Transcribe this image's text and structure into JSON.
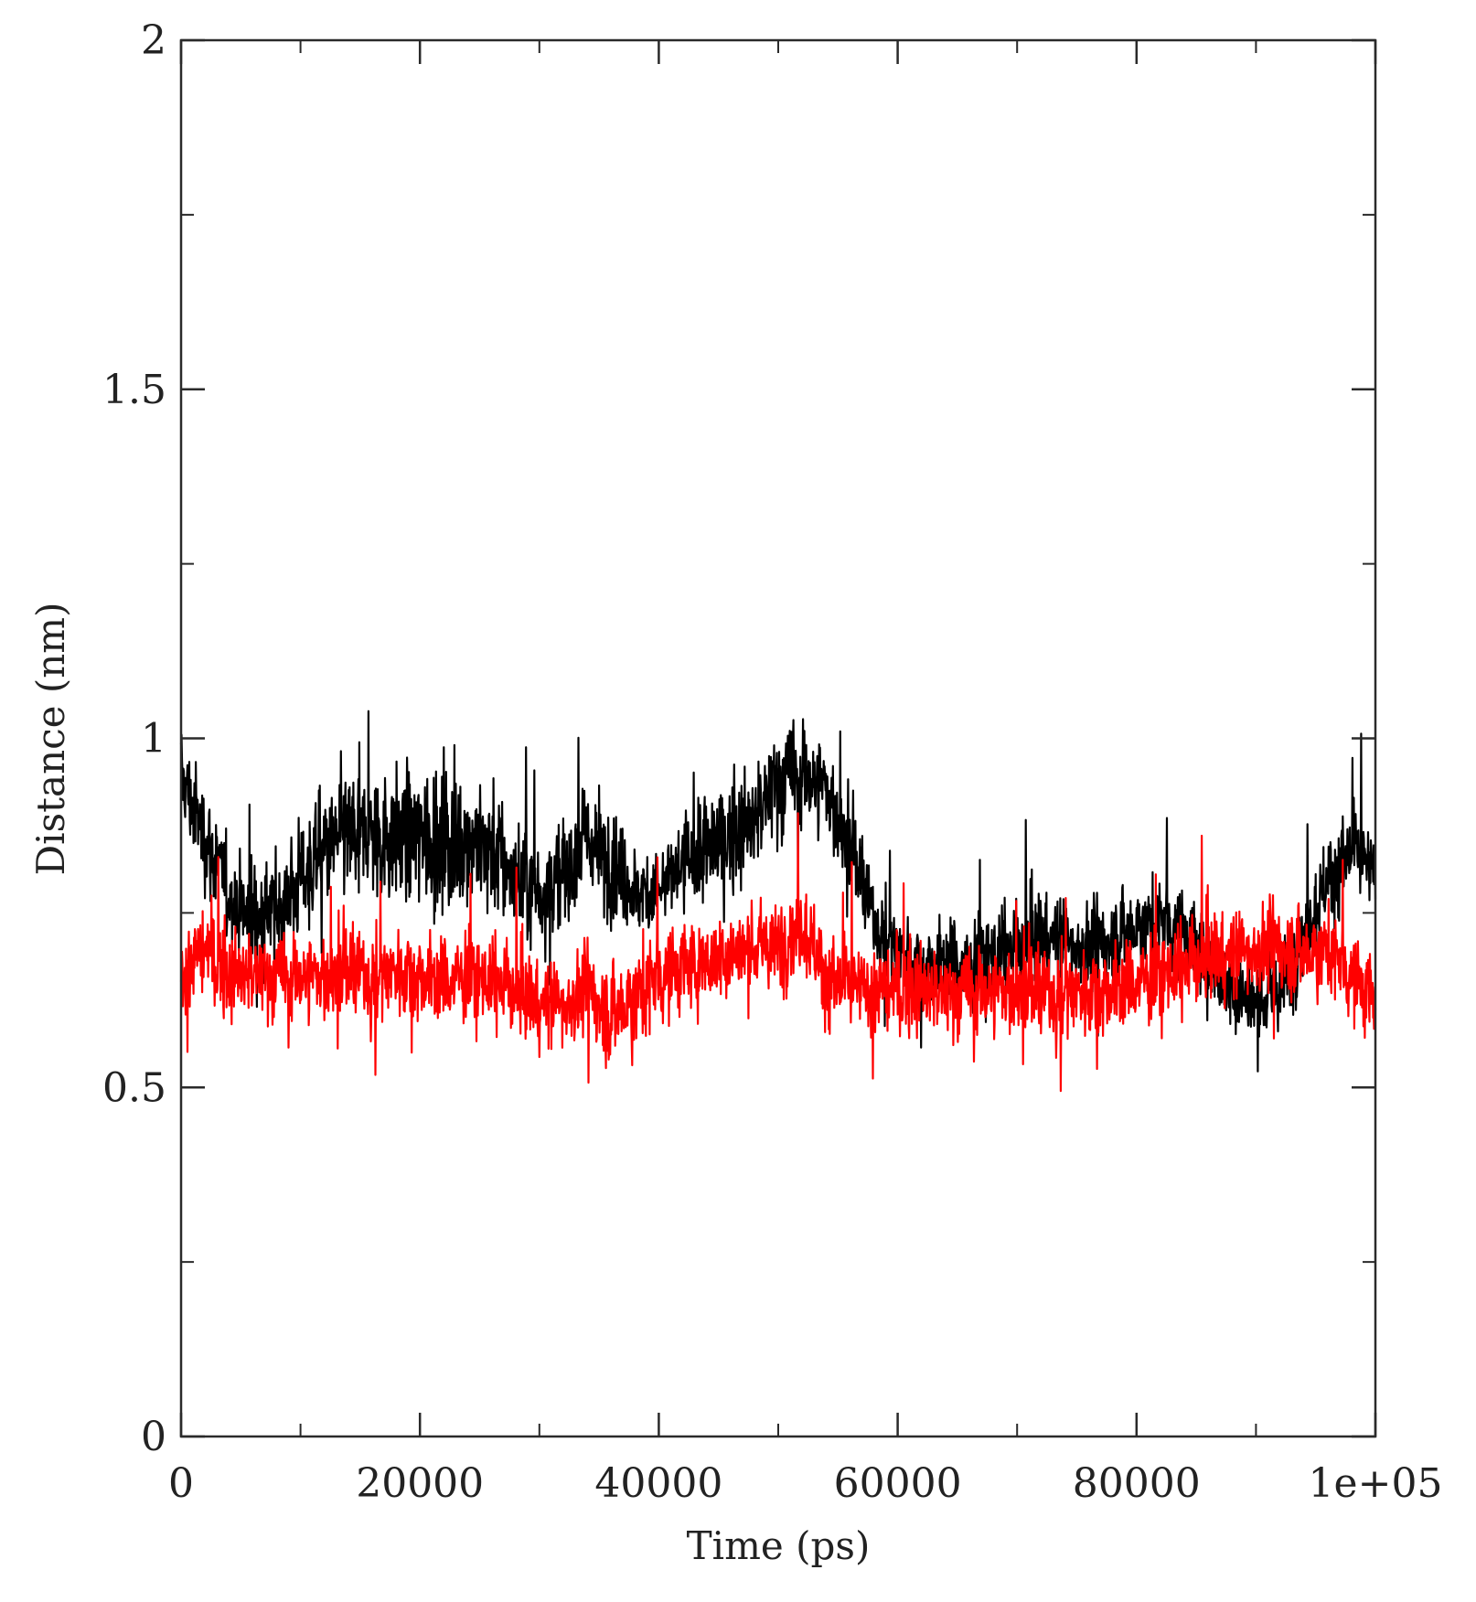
{
  "chart_data": {
    "type": "line",
    "title": "",
    "xlabel": "Time (ps)",
    "ylabel": "Distance (nm)",
    "xlim": [
      0,
      100000
    ],
    "ylim": [
      0,
      2
    ],
    "x_ticks": [
      "0",
      "20000",
      "40000",
      "60000",
      "80000",
      "1e+05"
    ],
    "x_tick_values": [
      0,
      20000,
      40000,
      60000,
      80000,
      100000
    ],
    "y_ticks": [
      "0",
      "0.5",
      "1",
      "1.5",
      "2"
    ],
    "y_tick_values": [
      0,
      0.5,
      1,
      1.5,
      2
    ],
    "grid": false,
    "legend": "none",
    "series": [
      {
        "color": "#000000",
        "x": [
          0,
          1000,
          2000,
          4000,
          6000,
          8000,
          10000,
          12000,
          14000,
          16000,
          18000,
          20000,
          22000,
          24000,
          26000,
          28000,
          30000,
          32000,
          34000,
          36000,
          38000,
          40000,
          42000,
          44000,
          46000,
          48000,
          50000,
          52000,
          54000,
          56000,
          58000,
          60000,
          62000,
          64000,
          66000,
          68000,
          70000,
          72000,
          74000,
          76000,
          78000,
          80000,
          82000,
          84000,
          86000,
          88000,
          90000,
          92000,
          94000,
          96000,
          98000,
          100000
        ],
        "mean": [
          0.95,
          0.9,
          0.86,
          0.78,
          0.74,
          0.75,
          0.8,
          0.84,
          0.86,
          0.86,
          0.86,
          0.86,
          0.85,
          0.86,
          0.84,
          0.8,
          0.78,
          0.8,
          0.86,
          0.82,
          0.78,
          0.78,
          0.82,
          0.84,
          0.86,
          0.88,
          0.94,
          0.95,
          0.93,
          0.84,
          0.74,
          0.7,
          0.67,
          0.68,
          0.67,
          0.69,
          0.7,
          0.72,
          0.71,
          0.7,
          0.71,
          0.73,
          0.74,
          0.72,
          0.68,
          0.64,
          0.62,
          0.64,
          0.72,
          0.8,
          0.84,
          0.8
        ],
        "spread": [
          0.08,
          0.09,
          0.09,
          0.09,
          0.1,
          0.11,
          0.1,
          0.1,
          0.12,
          0.12,
          0.12,
          0.12,
          0.13,
          0.12,
          0.13,
          0.11,
          0.1,
          0.1,
          0.1,
          0.1,
          0.08,
          0.08,
          0.09,
          0.1,
          0.1,
          0.1,
          0.11,
          0.1,
          0.09,
          0.08,
          0.07,
          0.08,
          0.08,
          0.08,
          0.08,
          0.08,
          0.08,
          0.08,
          0.08,
          0.08,
          0.08,
          0.08,
          0.08,
          0.08,
          0.08,
          0.08,
          0.08,
          0.08,
          0.08,
          0.08,
          0.08,
          0.08
        ],
        "min": 0.38,
        "max": 1.15
      },
      {
        "color": "#ff0000",
        "x": [
          0,
          1000,
          2000,
          4000,
          6000,
          8000,
          10000,
          12000,
          14000,
          16000,
          18000,
          20000,
          22000,
          24000,
          26000,
          28000,
          30000,
          32000,
          34000,
          36000,
          38000,
          40000,
          42000,
          44000,
          46000,
          48000,
          50000,
          52000,
          54000,
          56000,
          58000,
          60000,
          62000,
          64000,
          66000,
          68000,
          70000,
          72000,
          74000,
          76000,
          78000,
          80000,
          82000,
          84000,
          86000,
          88000,
          90000,
          92000,
          94000,
          96000,
          98000,
          100000
        ],
        "mean": [
          0.66,
          0.68,
          0.7,
          0.66,
          0.66,
          0.66,
          0.66,
          0.66,
          0.66,
          0.66,
          0.67,
          0.66,
          0.65,
          0.66,
          0.65,
          0.64,
          0.62,
          0.62,
          0.64,
          0.6,
          0.63,
          0.66,
          0.67,
          0.68,
          0.69,
          0.7,
          0.7,
          0.74,
          0.66,
          0.64,
          0.64,
          0.64,
          0.64,
          0.63,
          0.64,
          0.64,
          0.64,
          0.63,
          0.64,
          0.64,
          0.64,
          0.65,
          0.66,
          0.67,
          0.69,
          0.69,
          0.7,
          0.7,
          0.69,
          0.7,
          0.66,
          0.62
        ],
        "spread": [
          0.07,
          0.08,
          0.08,
          0.08,
          0.08,
          0.08,
          0.08,
          0.08,
          0.08,
          0.08,
          0.08,
          0.08,
          0.08,
          0.08,
          0.08,
          0.08,
          0.08,
          0.08,
          0.08,
          0.09,
          0.1,
          0.09,
          0.08,
          0.08,
          0.08,
          0.08,
          0.08,
          0.09,
          0.08,
          0.08,
          0.08,
          0.08,
          0.08,
          0.08,
          0.08,
          0.08,
          0.08,
          0.08,
          0.08,
          0.08,
          0.08,
          0.08,
          0.08,
          0.08,
          0.08,
          0.08,
          0.08,
          0.08,
          0.08,
          0.08,
          0.08,
          0.08
        ],
        "min": 0.31,
        "max": 0.9
      }
    ]
  }
}
